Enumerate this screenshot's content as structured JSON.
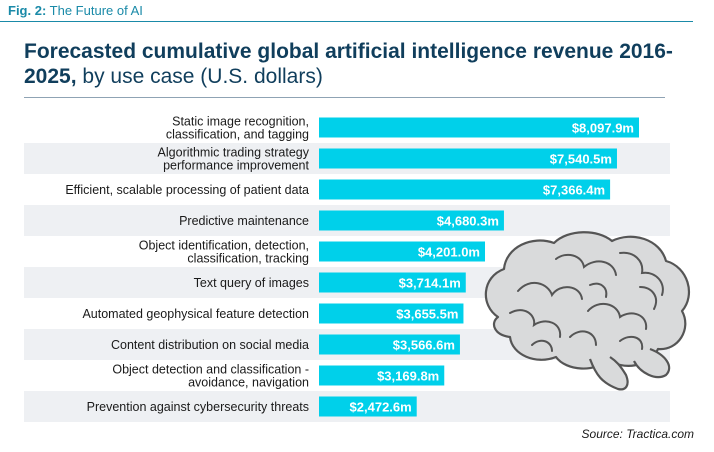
{
  "figure": {
    "label": "Fig. 2:",
    "caption": "The Future of AI"
  },
  "title": {
    "bold_part": "Forecasted cumulative global artificial intelligence revenue 2016-2025,",
    "light_part": "by use case (U.S. dollars)"
  },
  "source": "Source: Tractica.com",
  "colors": {
    "bar": "#00d0ea",
    "stripe": "#eef0f3",
    "title": "#103e5c",
    "accent": "#1a8aa8"
  },
  "decoration": "brain-icon",
  "chart_data": {
    "type": "bar",
    "orientation": "horizontal",
    "title": "Forecasted cumulative global artificial intelligence revenue 2016-2025, by use case (U.S. dollars)",
    "categories": [
      [
        "Static image recognition,",
        "classification, and tagging"
      ],
      [
        "Algorithmic trading strategy",
        "performance improvement"
      ],
      [
        "Efficient, scalable processing of patient data"
      ],
      [
        "Predictive maintenance"
      ],
      [
        "Object identification, detection,",
        "classification, tracking"
      ],
      [
        "Text query of images"
      ],
      [
        "Automated geophysical feature detection"
      ],
      [
        "Content distribution on social media"
      ],
      [
        "Object detection and classification -",
        "avoidance, navigation"
      ],
      [
        "Prevention against cybersecurity threats"
      ]
    ],
    "values": [
      8097.9,
      7540.5,
      7366.4,
      4680.3,
      4201.0,
      3714.1,
      3655.5,
      3566.6,
      3169.8,
      2472.6
    ],
    "value_labels": [
      "$8,097.9m",
      "$7,540.5m",
      "$7,366.4m",
      "$4,680.3m",
      "$4,201.0m",
      "$3,714.1m",
      "$3,655.5m",
      "$3,566.6m",
      "$3,169.8m",
      "$2,472.6m"
    ],
    "unit": "U.S. dollars (millions)",
    "xlim": [
      0,
      8097.9
    ],
    "legend": "none",
    "grid": false
  }
}
